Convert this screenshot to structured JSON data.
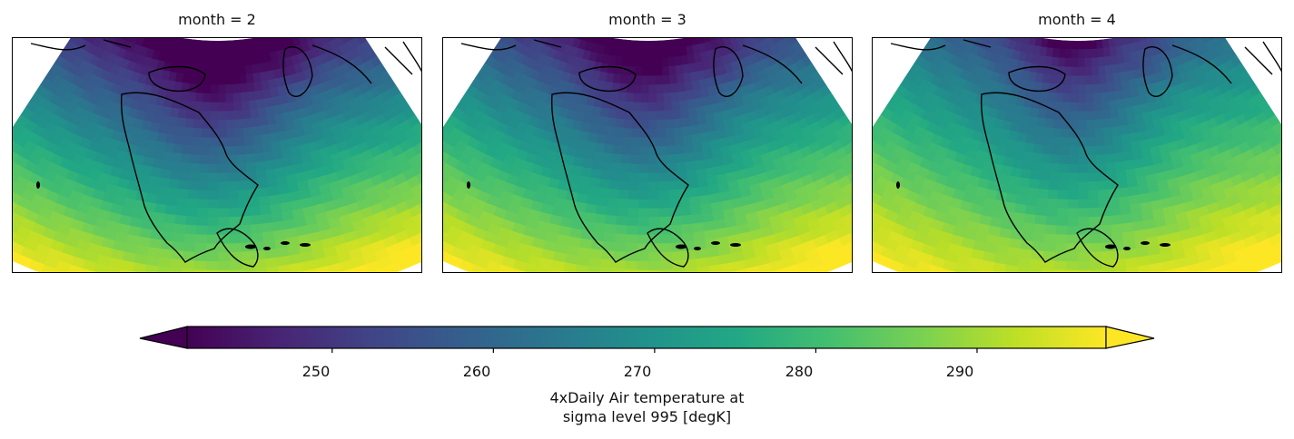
{
  "panels": [
    {
      "title": "month = 2",
      "warmth": 0.0
    },
    {
      "title": "month = 3",
      "warmth": 0.15
    },
    {
      "title": "month = 4",
      "warmth": 0.4
    }
  ],
  "colorbar": {
    "colormap": "viridis",
    "vmin": 241,
    "vmax": 298,
    "extend": "both",
    "ticks": [
      "250",
      "260",
      "270",
      "280",
      "290"
    ],
    "label_line1": "4xDaily Air temperature at",
    "label_line2": "sigma level 995 [degK]"
  }
}
